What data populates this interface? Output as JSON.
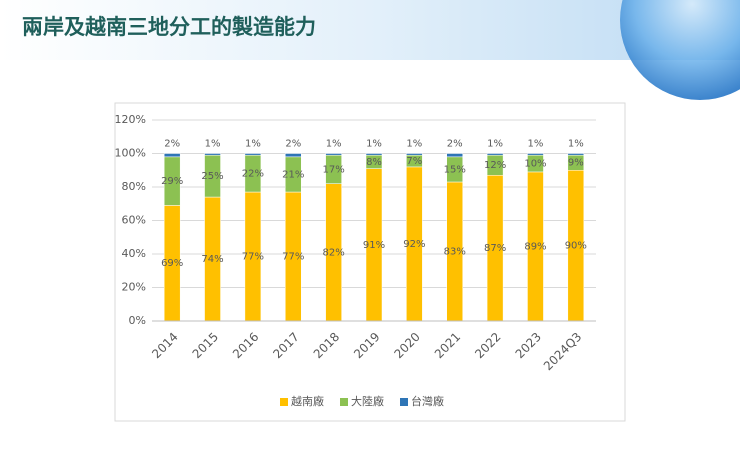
{
  "chart_data": {
    "type": "stacked_bar",
    "title": "兩岸及越南三地分工的製造能力",
    "categories": [
      "2014",
      "2015",
      "2016",
      "2017",
      "2018",
      "2019",
      "2020",
      "2021",
      "2022",
      "2023",
      "2024Q3"
    ],
    "series": [
      {
        "name": "越南廠",
        "color": "#ffc000",
        "label_color": "#8a5a00",
        "values": [
          69,
          74,
          77,
          77,
          82,
          91,
          92,
          83,
          87,
          89,
          90
        ],
        "value_labels": [
          "69%",
          "74%",
          "77%",
          "77%",
          "82%",
          "91%",
          "92%",
          "83%",
          "87%",
          "89%",
          "90%"
        ]
      },
      {
        "name": "大陸廠",
        "color": "#8cc152",
        "label_color": "#b03a10",
        "values": [
          29,
          25,
          22,
          21,
          17,
          8,
          7,
          15,
          12,
          10,
          9
        ],
        "value_labels": [
          "29%",
          "25%",
          "22%",
          "21%",
          "17%",
          "8%",
          "7%",
          "15%",
          "12%",
          "10%",
          "9%"
        ]
      },
      {
        "name": "台灣廠",
        "color": "#2e75b6",
        "label_color": "#1f3fbf",
        "values": [
          2,
          1,
          1,
          2,
          1,
          1,
          1,
          2,
          1,
          1,
          1
        ],
        "value_labels": [
          "2%",
          "1%",
          "1%",
          "2%",
          "1%",
          "1%",
          "1%",
          "2%",
          "1%",
          "1%",
          "1%"
        ]
      }
    ],
    "ylim": [
      0,
      120
    ],
    "yticks": [
      {
        "value": 0,
        "label": "0%"
      },
      {
        "value": 20,
        "label": "20%"
      },
      {
        "value": 40,
        "label": "40%"
      },
      {
        "value": 60,
        "label": "60%"
      },
      {
        "value": 80,
        "label": "80%"
      },
      {
        "value": 100,
        "label": "100%"
      },
      {
        "value": 120,
        "label": "120%"
      }
    ],
    "grid": true,
    "legend": "bottom"
  }
}
